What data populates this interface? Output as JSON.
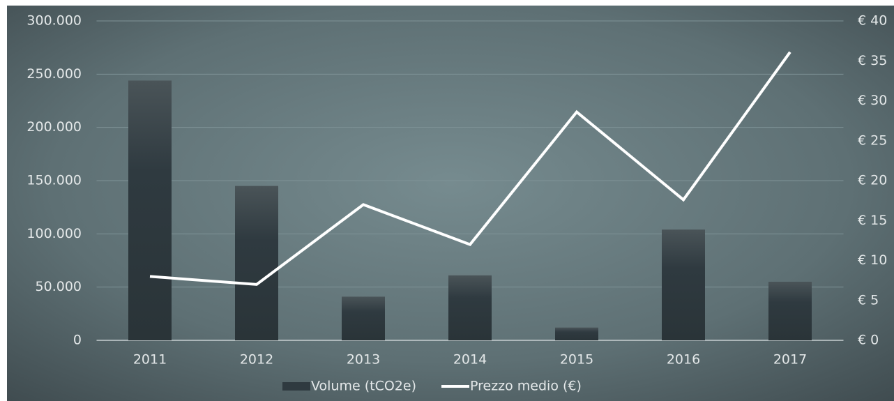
{
  "chart_data": {
    "type": "bar-line",
    "categories": [
      "2011",
      "2012",
      "2013",
      "2014",
      "2015",
      "2016",
      "2017"
    ],
    "series": [
      {
        "name": "Volume (tCO2e)",
        "type": "bar",
        "color": "#2f3a40",
        "values": [
          244000,
          145000,
          41000,
          61000,
          12000,
          104000,
          55000
        ]
      },
      {
        "name": "Prezzo medio (€)",
        "type": "line",
        "axis": "y2",
        "color": "#ffffff",
        "values": [
          8,
          7,
          17,
          12,
          28.6,
          17.6,
          36.1
        ]
      }
    ],
    "ylim": [
      0,
      300000
    ],
    "yticks": [
      {
        "value": 0,
        "label": "0"
      },
      {
        "value": 50000,
        "label": "50.000"
      },
      {
        "value": 100000,
        "label": "100.000"
      },
      {
        "value": 150000,
        "label": "150.000"
      },
      {
        "value": 200000,
        "label": "200.000"
      },
      {
        "value": 250000,
        "label": "250.000"
      },
      {
        "value": 300000,
        "label": "300.000"
      }
    ],
    "y2lim": [
      0,
      40
    ],
    "y2ticks": [
      {
        "value": 0,
        "label": "€ 0"
      },
      {
        "value": 5,
        "label": "€ 5"
      },
      {
        "value": 10,
        "label": "€ 10"
      },
      {
        "value": 15,
        "label": "€ 15"
      },
      {
        "value": 20,
        "label": "€ 20"
      },
      {
        "value": 25,
        "label": "€ 25"
      },
      {
        "value": 30,
        "label": "€ 30"
      },
      {
        "value": 35,
        "label": "€ 35"
      },
      {
        "value": 40,
        "label": "€ 40"
      }
    ],
    "grid": true,
    "legend": "bottom"
  }
}
